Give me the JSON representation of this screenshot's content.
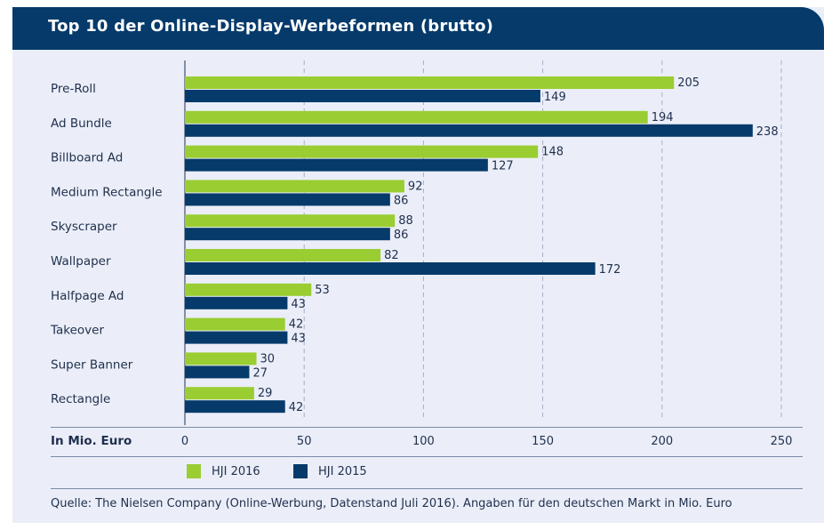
{
  "title": "Top 10 der Online-Display-Werbeformen (brutto)",
  "colors": {
    "header_bg": "#053a6b",
    "panel_bg": "#ebeef8",
    "hji2016": "#9acd32",
    "hji2015": "#053a6b",
    "text": "#1f2f4d"
  },
  "chart_data": {
    "type": "bar",
    "orientation": "horizontal",
    "categories": [
      "Pre-Roll",
      "Ad Bundle",
      "Billboard Ad",
      "Medium Rectangle",
      "Skyscraper",
      "Wallpaper",
      "Halfpage Ad",
      "Takeover",
      "Super Banner",
      "Rectangle"
    ],
    "series": [
      {
        "name": "HJI 2016",
        "values": [
          205,
          194,
          148,
          92,
          88,
          82,
          53,
          42,
          30,
          29
        ]
      },
      {
        "name": "HJI 2015",
        "values": [
          149,
          238,
          127,
          86,
          86,
          172,
          43,
          43,
          27,
          42
        ]
      }
    ],
    "xlabel": "In Mio. Euro",
    "xlim": [
      0,
      250
    ],
    "xticks": [
      "0",
      "50",
      "100",
      "150",
      "200",
      "250"
    ],
    "grid": "vertical dashed",
    "legend_position": "bottom"
  },
  "source": "Quelle: The Nielsen Company (Online-Werbung, Datenstand Juli 2016). Angaben für den deutschen Markt in Mio. Euro"
}
